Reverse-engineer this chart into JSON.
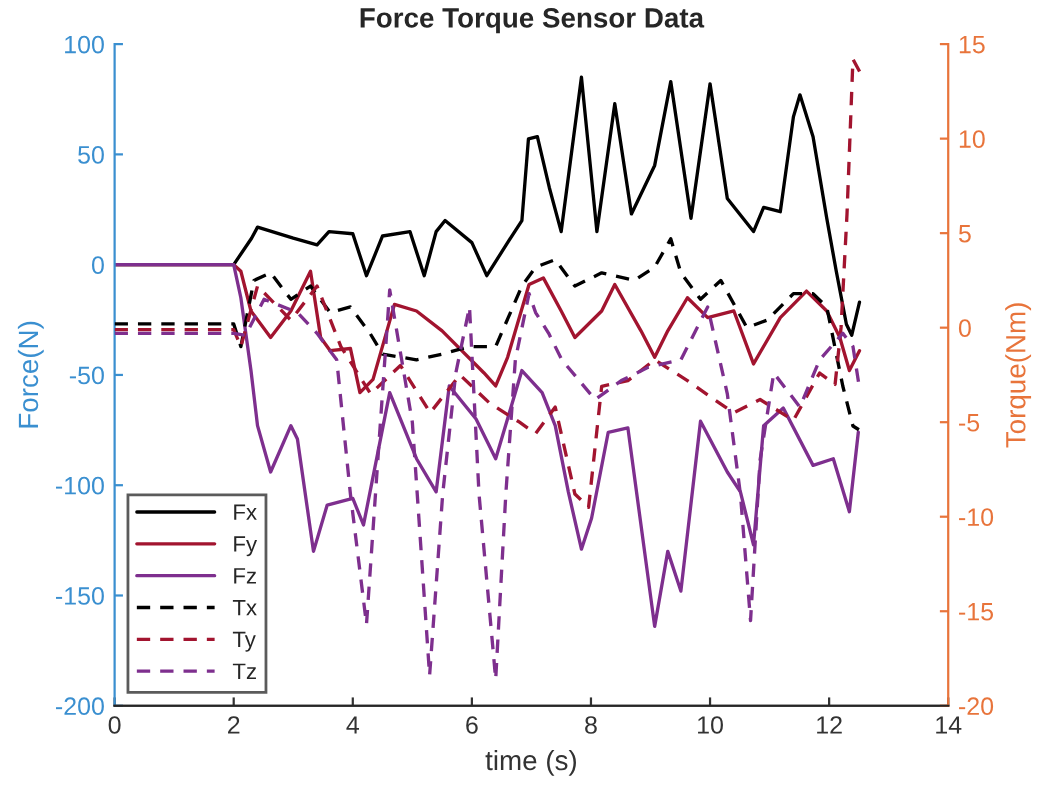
{
  "chart_data": {
    "type": "line",
    "title": "Force Torque Sensor Data",
    "xlabel": "time (s)",
    "ylabel": "Force(N)",
    "y2label": "Torque(Nm)",
    "xlim": [
      0,
      14
    ],
    "xticks": [
      0,
      2,
      4,
      6,
      8,
      10,
      12,
      14
    ],
    "ylim": [
      -200,
      100
    ],
    "yticks": [
      -200,
      -150,
      -100,
      -50,
      0,
      50,
      100
    ],
    "y2lim": [
      -20,
      15
    ],
    "y2ticks": [
      -20,
      -15,
      -10,
      -5,
      0,
      5,
      10,
      15
    ],
    "grid": false,
    "legend": "bottom left",
    "marker": "none",
    "series": [
      {
        "name": "Fx",
        "color": "#000000",
        "axis": "y",
        "line_style": "solid",
        "x": [
          0,
          2,
          2.3,
          2.4,
          3.0,
          3.4,
          3.6,
          4.0,
          4.23,
          4.5,
          4.96,
          5.2,
          5.4,
          5.55,
          6.0,
          6.25,
          6.6,
          6.84,
          6.95,
          7.1,
          7.3,
          7.5,
          7.84,
          8.1,
          8.4,
          8.68,
          9.07,
          9.34,
          9.68,
          10.0,
          10.29,
          10.73,
          10.9,
          11.18,
          11.4,
          11.51,
          11.73,
          11.96,
          12.12,
          12.29,
          12.38,
          12.51
        ],
        "values": [
          0,
          0,
          12,
          17,
          12,
          9,
          15,
          14,
          -5,
          13,
          15,
          -5,
          15,
          20,
          10,
          -5,
          10,
          20,
          57,
          58,
          35,
          15,
          85,
          15,
          73,
          23,
          45,
          83,
          21,
          82,
          30,
          15,
          26,
          24,
          67,
          77,
          58,
          21,
          -3,
          -27,
          -32,
          -17
        ]
      },
      {
        "name": "Fy",
        "color": "#a2142f",
        "axis": "y",
        "line_style": "solid",
        "x": [
          0,
          2,
          2.12,
          2.29,
          2.62,
          2.96,
          3.29,
          3.46,
          3.62,
          3.96,
          4.12,
          4.34,
          4.7,
          5.07,
          5.5,
          6.2,
          6.4,
          6.6,
          6.96,
          7.2,
          7.5,
          7.73,
          8.18,
          8.4,
          8.84,
          9.07,
          9.29,
          9.62,
          9.96,
          10.4,
          10.73,
          11.18,
          11.62,
          11.96,
          12.18,
          12.34,
          12.51
        ],
        "values": [
          0,
          0,
          -3,
          -21,
          -33,
          -21,
          -3,
          -33,
          -39,
          -38,
          -58,
          -52,
          -18,
          -21,
          -30,
          -49,
          -55,
          -42,
          -9,
          -6,
          -21,
          -33,
          -21,
          -9,
          -30,
          -42,
          -30,
          -15,
          -24,
          -21,
          -45,
          -24,
          -12,
          -21,
          -33,
          -48,
          -39
        ]
      },
      {
        "name": "Fz",
        "color": "#7e2f8e",
        "axis": "y",
        "line_style": "solid",
        "x": [
          0,
          2,
          2.12,
          2.29,
          2.4,
          2.62,
          2.96,
          3.07,
          3.34,
          3.57,
          4.0,
          4.18,
          4.62,
          5.07,
          5.4,
          5.62,
          6.07,
          6.4,
          6.84,
          7.18,
          7.4,
          7.62,
          7.84,
          8.01,
          8.29,
          8.62,
          9.07,
          9.29,
          9.51,
          9.84,
          10.29,
          10.51,
          10.73,
          10.9,
          11.23,
          11.73,
          12.07,
          12.34,
          12.49
        ],
        "values": [
          0,
          0,
          -15,
          -48,
          -73,
          -94,
          -73,
          -79,
          -130,
          -109,
          -106,
          -118,
          -58,
          -88,
          -103,
          -55,
          -70,
          -88,
          -48,
          -58,
          -73,
          -103,
          -129,
          -115,
          -76,
          -74,
          -164,
          -130,
          -148,
          -71,
          -94,
          -103,
          -127,
          -73,
          -65,
          -91,
          -88,
          -112,
          -76
        ]
      },
      {
        "name": "Tx",
        "color": "#000000",
        "axis": "y2",
        "line_style": "dashed",
        "x": [
          0,
          2,
          2.12,
          2.34,
          2.62,
          2.96,
          3.29,
          3.62,
          3.96,
          4.29,
          4.5,
          5.07,
          5.5,
          5.96,
          6.4,
          6.84,
          7.07,
          7.4,
          7.73,
          8.18,
          8.73,
          9.07,
          9.34,
          9.51,
          9.84,
          10.18,
          10.62,
          10.96,
          11.4,
          11.73,
          11.96,
          12.23,
          12.4,
          12.5
        ],
        "values": [
          0.2,
          0.2,
          -1.0,
          2.5,
          2.9,
          1.5,
          2.2,
          0.8,
          1.1,
          -0.3,
          -1.4,
          -1.7,
          -1.4,
          -1.0,
          -1.0,
          2.2,
          3.2,
          3.6,
          2.2,
          2.9,
          2.5,
          3.2,
          4.7,
          2.9,
          1.5,
          2.5,
          0,
          0.4,
          1.8,
          1.8,
          1.1,
          -3.1,
          -5.2,
          -5.4
        ]
      },
      {
        "name": "Ty",
        "color": "#a2142f",
        "axis": "y2",
        "line_style": "dashed",
        "x": [
          0,
          2,
          2.12,
          2.4,
          2.96,
          3.4,
          3.8,
          4.3,
          4.8,
          5.3,
          5.8,
          6.3,
          6.8,
          7.07,
          7.4,
          7.73,
          7.96,
          8.18,
          8.62,
          9.07,
          9.62,
          10.07,
          10.4,
          10.84,
          11.4,
          11.84,
          12.1,
          12.2,
          12.3,
          12.4,
          12.52
        ],
        "values": [
          -0.1,
          -0.1,
          -1.0,
          2.2,
          0.4,
          2.2,
          -1.0,
          -3.5,
          -2.0,
          -4.5,
          -2.5,
          -4.0,
          -5.0,
          -5.6,
          -4.2,
          -8.8,
          -9.5,
          -3.1,
          -2.8,
          -1.7,
          -2.8,
          -3.8,
          -4.5,
          -3.8,
          -4.9,
          -2.4,
          -3.0,
          0,
          6,
          14.2,
          13.5
        ]
      },
      {
        "name": "Tz",
        "color": "#7e2f8e",
        "axis": "y2",
        "line_style": "dashed",
        "x": [
          0,
          2,
          2.2,
          2.51,
          3.07,
          3.4,
          3.73,
          3.96,
          4.23,
          4.46,
          4.62,
          5.0,
          5.29,
          5.51,
          5.73,
          5.96,
          6.12,
          6.4,
          6.57,
          6.73,
          6.96,
          7.07,
          7.29,
          7.51,
          8.07,
          8.51,
          8.96,
          9.51,
          9.96,
          10.29,
          10.51,
          10.68,
          10.84,
          11.07,
          11.51,
          11.84,
          12.23,
          12.4,
          12.5
        ],
        "values": [
          -0.3,
          -0.3,
          -0.4,
          1.5,
          0.8,
          -0.3,
          -1.7,
          -8.8,
          -15.7,
          -5.2,
          2.0,
          -5.0,
          -18.4,
          -8.8,
          -2.4,
          1.1,
          -8.8,
          -18.6,
          -8.8,
          -1.7,
          1.8,
          0.8,
          -0.3,
          -1.7,
          -3.8,
          -2.8,
          -2.1,
          -1.7,
          1.1,
          -3.5,
          -8.8,
          -15.5,
          -7.0,
          -2.4,
          -4.2,
          -1.7,
          -0.3,
          -1.0,
          -3.0
        ]
      }
    ]
  }
}
